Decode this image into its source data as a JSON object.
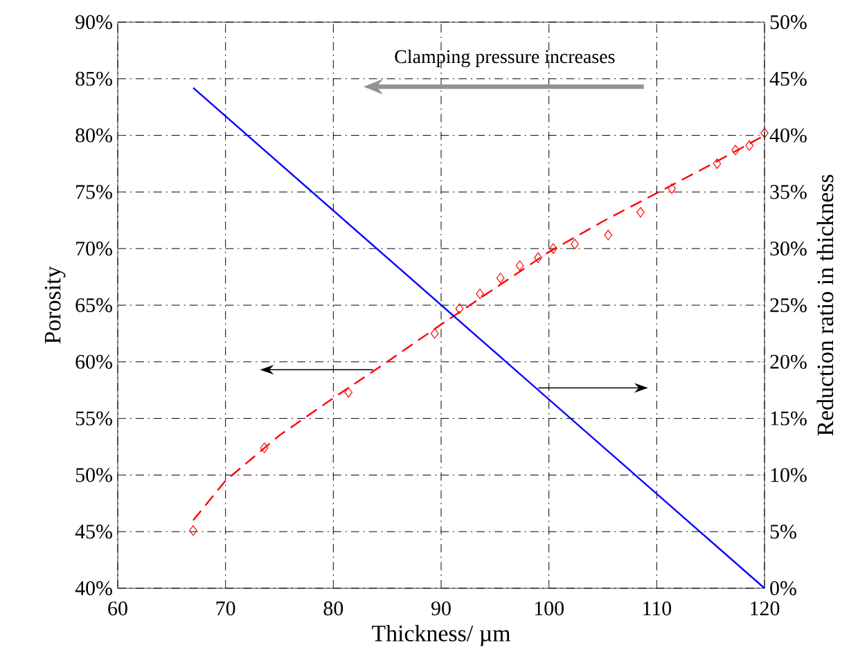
{
  "chart_data": {
    "type": "line",
    "xlabel": "Thickness/ µm",
    "ylabel": "Porosity",
    "y2label": "Reduction ratio in thickness",
    "annotations": [
      "Clamping pressure increases"
    ],
    "xlim": [
      60,
      120
    ],
    "xticks": [
      60,
      70,
      80,
      90,
      100,
      110,
      120
    ],
    "ylim": [
      40,
      90
    ],
    "yticks": [
      {
        "value": 40,
        "label": "40%"
      },
      {
        "value": 45,
        "label": "45%"
      },
      {
        "value": 50,
        "label": "50%"
      },
      {
        "value": 55,
        "label": "55%"
      },
      {
        "value": 60,
        "label": "60%"
      },
      {
        "value": 65,
        "label": "65%"
      },
      {
        "value": 70,
        "label": "70%"
      },
      {
        "value": 75,
        "label": "75%"
      },
      {
        "value": 80,
        "label": "80%"
      },
      {
        "value": 85,
        "label": "85%"
      },
      {
        "value": 90,
        "label": "90%"
      }
    ],
    "y2lim": [
      0,
      50
    ],
    "y2ticks": [
      {
        "value": 0,
        "label": "0%"
      },
      {
        "value": 5,
        "label": "5%"
      },
      {
        "value": 10,
        "label": "10%"
      },
      {
        "value": 15,
        "label": "15%"
      },
      {
        "value": 20,
        "label": "20%"
      },
      {
        "value": 25,
        "label": "25%"
      },
      {
        "value": 30,
        "label": "30%"
      },
      {
        "value": 35,
        "label": "35%"
      },
      {
        "value": 40,
        "label": "40%"
      },
      {
        "value": 45,
        "label": "45%"
      },
      {
        "value": 50,
        "label": "50%"
      }
    ],
    "grid": true,
    "series": [
      {
        "type": "scatter",
        "marker": "diamond",
        "color": "#ff0000",
        "x": [
          67.0,
          73.6,
          81.4,
          89.4,
          91.7,
          93.6,
          95.5,
          97.3,
          99.0,
          100.4,
          102.4,
          105.5,
          108.5,
          111.4,
          115.6,
          117.3,
          118.6,
          120.0
        ],
        "values": [
          45.1,
          52.4,
          57.3,
          62.5,
          64.7,
          66.0,
          67.4,
          68.5,
          69.2,
          70.0,
          70.4,
          71.2,
          73.2,
          75.3,
          77.5,
          78.7,
          79.1,
          80.2
        ]
      },
      {
        "line_style": "dashed",
        "color": "#ff0000",
        "x": [
          67,
          70,
          75,
          80,
          85,
          90,
          95,
          100,
          105,
          110,
          115,
          120
        ],
        "values": [
          46.0,
          49.5,
          53.5,
          56.8,
          60.0,
          63.3,
          66.5,
          69.7,
          72.4,
          74.9,
          77.4,
          80.0
        ]
      },
      {
        "line_style": "solid",
        "axis": "y2",
        "color": "#0000ff",
        "x": [
          67,
          120
        ],
        "values": [
          44.2,
          0
        ]
      }
    ]
  }
}
